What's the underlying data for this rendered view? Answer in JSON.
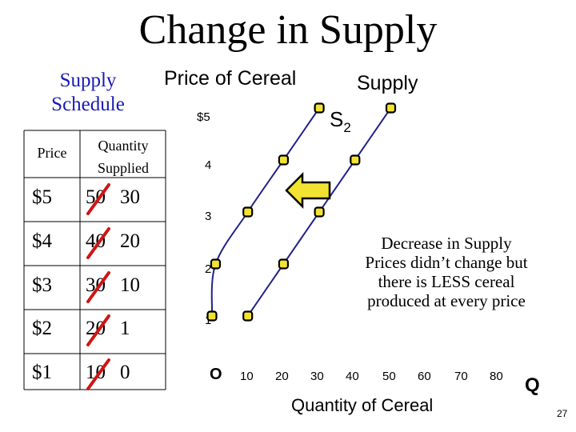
{
  "slide": {
    "title": "Change in Supply",
    "page_number": "27"
  },
  "schedule": {
    "title_line1": "Supply",
    "title_line2": "Schedule",
    "headers": {
      "price": "Price",
      "quantity_line1": "Quantity",
      "quantity_line2": "Supplied"
    },
    "rows": [
      {
        "price": "$5",
        "old_qty": "50",
        "new_qty": "30"
      },
      {
        "price": "$4",
        "old_qty": "40",
        "new_qty": "20"
      },
      {
        "price": "$3",
        "old_qty": "30",
        "new_qty": "10"
      },
      {
        "price": "$2",
        "old_qty": "20",
        "new_qty": "1"
      },
      {
        "price": "$1",
        "old_qty": "10",
        "new_qty": "0"
      }
    ]
  },
  "annotation": {
    "lines": [
      "Decrease in Supply",
      "Prices didn’t change but",
      "there is LESS cereal",
      "produced at every price"
    ],
    "arrow_icon": "left-arrow-icon"
  },
  "colors": {
    "curve": "#23238c",
    "point_fill": "#f2e332",
    "point_stroke": "#000000",
    "table_border": "#000000",
    "strike": "#d01414",
    "arrow_fill": "#f2e332",
    "schedule_title": "#1a1ab4"
  },
  "chart_data": {
    "type": "line",
    "title": "Price of Cereal",
    "xlabel": "Quantity of Cereal",
    "x_axis_letter": "Q",
    "y_axis_letter": "O",
    "x_ticks": [
      "10",
      "20",
      "30",
      "40",
      "50",
      "60",
      "70",
      "80"
    ],
    "y_ticks": [
      "$5",
      "4",
      "3",
      "2",
      "1"
    ],
    "xlim": [
      0,
      85
    ],
    "ylim": [
      0,
      5.4
    ],
    "series": [
      {
        "name": "Supply",
        "points": [
          {
            "x": 10,
            "y": 1
          },
          {
            "x": 20,
            "y": 2
          },
          {
            "x": 30,
            "y": 3
          },
          {
            "x": 40,
            "y": 4
          },
          {
            "x": 50,
            "y": 5
          }
        ]
      },
      {
        "name": "S2",
        "label_main": "S",
        "label_sub": "2",
        "points": [
          {
            "x": 0,
            "y": 1
          },
          {
            "x": 1,
            "y": 2
          },
          {
            "x": 10,
            "y": 3
          },
          {
            "x": 20,
            "y": 4
          },
          {
            "x": 30,
            "y": 5
          }
        ]
      }
    ]
  }
}
